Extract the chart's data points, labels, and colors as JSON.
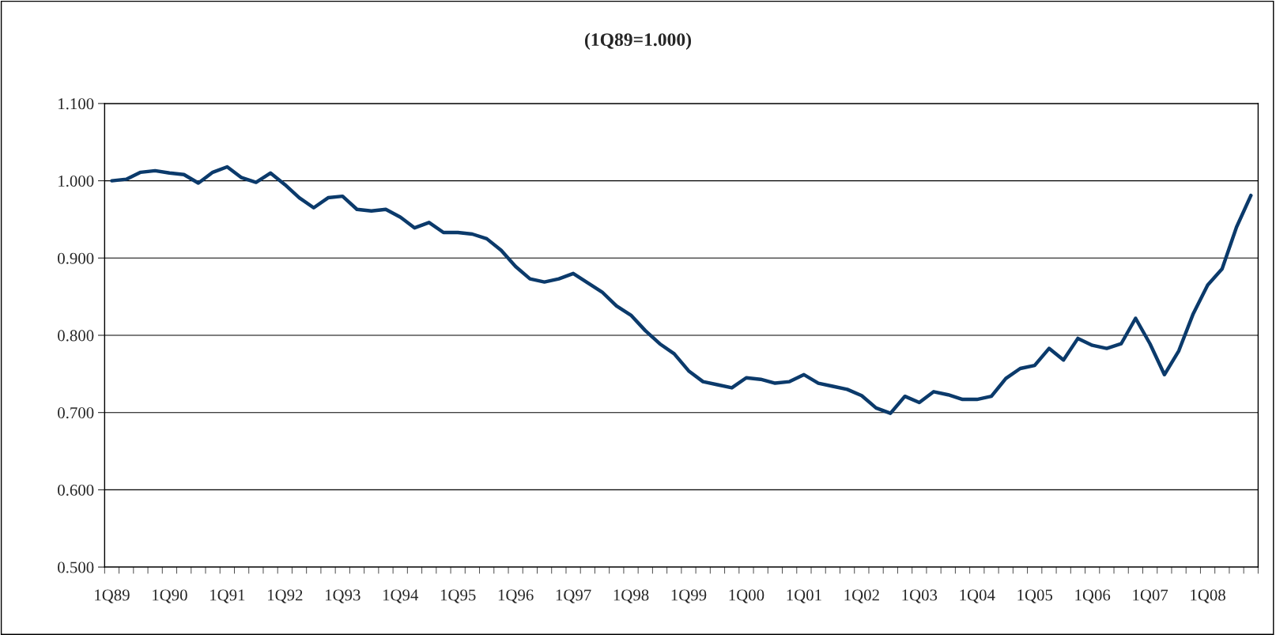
{
  "chart_data": {
    "type": "line",
    "title": "(1Q89=1.000)",
    "categories": [
      "1Q89",
      null,
      null,
      null,
      "1Q90",
      null,
      null,
      null,
      "1Q91",
      null,
      null,
      null,
      "1Q92",
      null,
      null,
      null,
      "1Q93",
      null,
      null,
      null,
      "1Q94",
      null,
      null,
      null,
      "1Q95",
      null,
      null,
      null,
      "1Q96",
      null,
      null,
      null,
      "1Q97",
      null,
      null,
      null,
      "1Q98",
      null,
      null,
      null,
      "1Q99",
      null,
      null,
      null,
      "1Q00",
      null,
      null,
      null,
      "1Q01",
      null,
      null,
      null,
      "1Q02",
      null,
      null,
      null,
      "1Q03",
      null,
      null,
      null,
      "1Q04",
      null,
      null,
      null,
      "1Q05",
      null,
      null,
      null,
      "1Q06",
      null,
      null,
      null,
      "1Q07",
      null,
      null,
      null,
      "1Q08",
      null,
      null,
      null
    ],
    "series": [
      {
        "color": "#0b3a6b",
        "values": [
          1.0,
          1.002,
          1.011,
          1.013,
          1.01,
          1.008,
          0.997,
          1.011,
          1.018,
          1.004,
          0.998,
          1.01,
          0.995,
          0.978,
          0.965,
          0.978,
          0.98,
          0.963,
          0.961,
          0.963,
          0.953,
          0.939,
          0.946,
          0.933,
          0.933,
          0.931,
          0.925,
          0.91,
          0.889,
          0.873,
          0.869,
          0.873,
          0.88,
          0.868,
          0.856,
          0.838,
          0.826,
          0.806,
          0.789,
          0.776,
          0.754,
          0.74,
          0.736,
          0.732,
          0.745,
          0.743,
          0.738,
          0.74,
          0.749,
          0.738,
          0.734,
          0.73,
          0.722,
          0.706,
          0.699,
          0.721,
          0.713,
          0.727,
          0.723,
          0.717,
          0.717,
          0.721,
          0.744,
          0.757,
          0.761,
          0.783,
          0.768,
          0.796,
          0.787,
          0.783,
          0.789,
          0.822,
          0.789,
          0.749,
          0.78,
          0.828,
          0.865,
          0.886,
          0.94,
          0.981
        ]
      }
    ],
    "ylim": [
      0.5,
      1.1
    ],
    "yticks": [
      {
        "value": 0.5,
        "label": "0.500"
      },
      {
        "value": 0.6,
        "label": "0.600"
      },
      {
        "value": 0.7,
        "label": "0.700"
      },
      {
        "value": 0.8,
        "label": "0.800"
      },
      {
        "value": 0.9,
        "label": "0.900"
      },
      {
        "value": 1.0,
        "label": "1.000"
      },
      {
        "value": 1.1,
        "label": "1.100"
      }
    ],
    "grid": "y",
    "marker": "none",
    "line_style": "solid"
  }
}
